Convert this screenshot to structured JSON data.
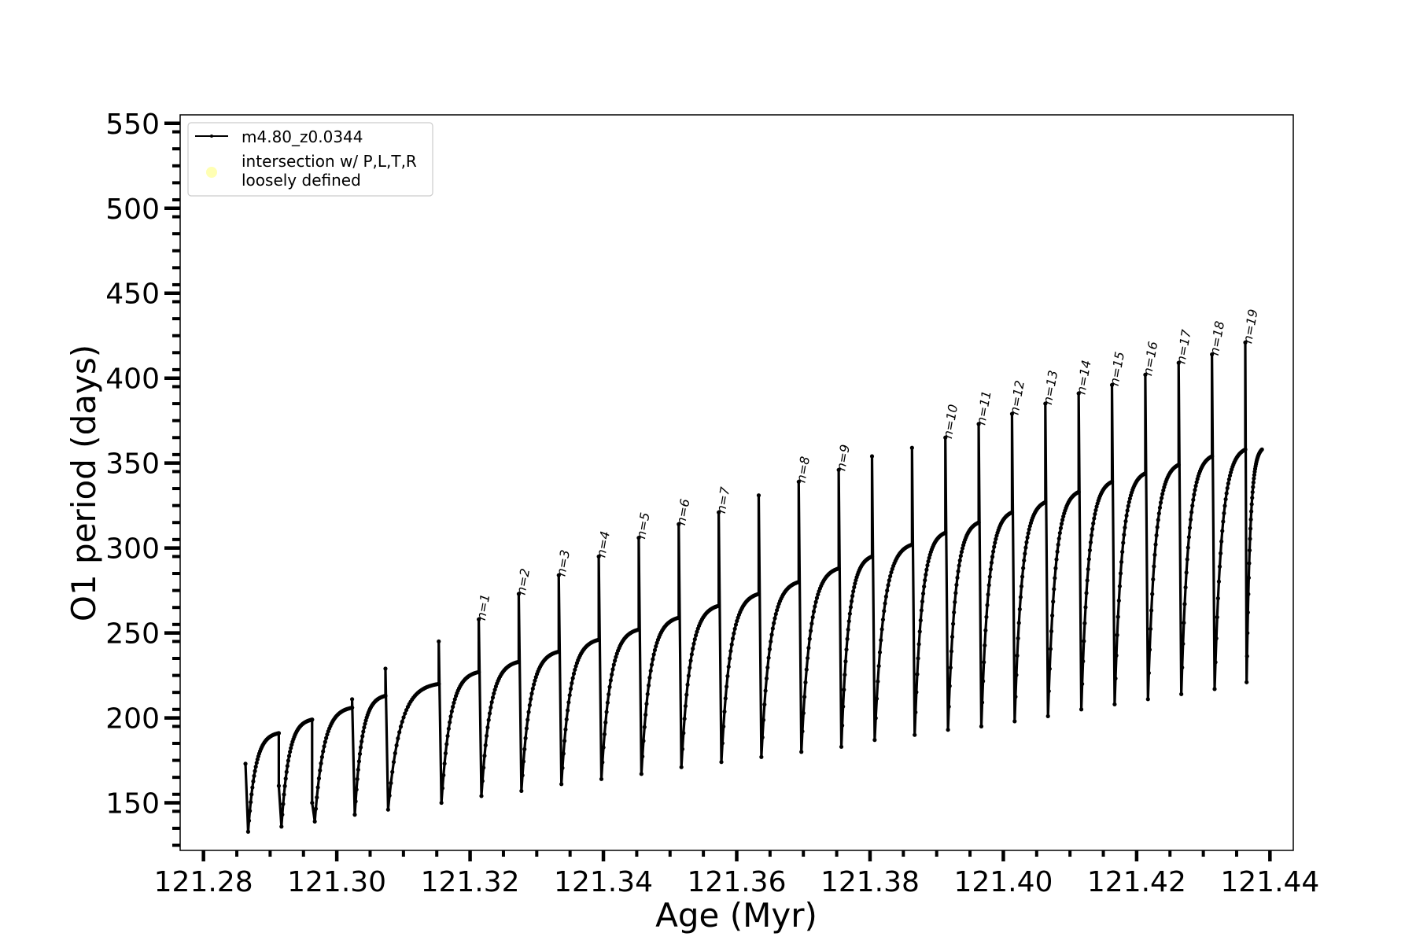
{
  "chart_data": {
    "type": "line",
    "xlabel": "Age (Myr)",
    "ylabel": "O1 period (days)",
    "xlim": [
      121.2765,
      121.4435
    ],
    "ylim": [
      122,
      555
    ],
    "x_ticks": [
      121.28,
      121.3,
      121.32,
      121.34,
      121.36,
      121.38,
      121.4,
      121.42,
      121.44
    ],
    "x_tick_labels": [
      "121.28",
      "121.30",
      "121.32",
      "121.34",
      "121.36",
      "121.38",
      "121.40",
      "121.42",
      "121.44"
    ],
    "y_ticks": [
      150,
      200,
      250,
      300,
      350,
      400,
      450,
      500,
      550
    ],
    "y_tick_labels": [
      "150",
      "200",
      "250",
      "300",
      "350",
      "400",
      "450",
      "500",
      "550"
    ],
    "grid": false,
    "legend": {
      "placement": "top-left",
      "entries": [
        {
          "label": "m4.80_z0.0344",
          "marker": "line-with-dots",
          "color": "#000000"
        },
        {
          "label_line1": "intersection w/ P,L,T,R",
          "label_line2": "loosely defined",
          "marker": "circle",
          "color": "#ffffb3"
        }
      ]
    },
    "series": [
      {
        "name": "m4.80_z0.0344",
        "color": "#000000",
        "cycles": [
          {
            "start": 121.2863,
            "spike": 173,
            "min": 133,
            "plateau": 191,
            "end": 121.2913
          },
          {
            "start": 121.2913,
            "spike": 160,
            "min": 136,
            "plateau": 199,
            "end": 121.2963
          },
          {
            "start": 121.2963,
            "spike": 150,
            "min": 139,
            "plateau": 206,
            "end": 121.3023
          },
          {
            "start": 121.3023,
            "spike": 211,
            "min": 143,
            "plateau": 213,
            "end": 121.3073
          },
          {
            "start": 121.3073,
            "spike": 229,
            "min": 146,
            "plateau": 220,
            "end": 121.3153
          },
          {
            "start": 121.3153,
            "spike": 245,
            "min": 150,
            "plateau": 227,
            "end": 121.3213
          },
          {
            "start": 121.3213,
            "spike": 258,
            "min": 154,
            "plateau": 233,
            "end": 121.3273
          },
          {
            "start": 121.3273,
            "spike": 273,
            "min": 157,
            "plateau": 239,
            "end": 121.3333
          },
          {
            "start": 121.3333,
            "spike": 284,
            "min": 161,
            "plateau": 246,
            "end": 121.3393
          },
          {
            "start": 121.3393,
            "spike": 295,
            "min": 164,
            "plateau": 252,
            "end": 121.3453
          },
          {
            "start": 121.3453,
            "spike": 306,
            "min": 167,
            "plateau": 259,
            "end": 121.3513
          },
          {
            "start": 121.3513,
            "spike": 314,
            "min": 171,
            "plateau": 266,
            "end": 121.3573
          },
          {
            "start": 121.3573,
            "spike": 321,
            "min": 174,
            "plateau": 273,
            "end": 121.3633
          },
          {
            "start": 121.3633,
            "spike": 331,
            "min": 177,
            "plateau": 280,
            "end": 121.3693
          },
          {
            "start": 121.3693,
            "spike": 339,
            "min": 180,
            "plateau": 288,
            "end": 121.3753
          },
          {
            "start": 121.3753,
            "spike": 346,
            "min": 183,
            "plateau": 295,
            "end": 121.3803
          },
          {
            "start": 121.3803,
            "spike": 354,
            "min": 187,
            "plateau": 302,
            "end": 121.3863
          },
          {
            "start": 121.3863,
            "spike": 359,
            "min": 190,
            "plateau": 309,
            "end": 121.3913
          },
          {
            "start": 121.3913,
            "spike": 365,
            "min": 193,
            "plateau": 315,
            "end": 121.3963
          },
          {
            "start": 121.3963,
            "spike": 373,
            "min": 195,
            "plateau": 321,
            "end": 121.4013
          },
          {
            "start": 121.4013,
            "spike": 379,
            "min": 198,
            "plateau": 327,
            "end": 121.4063
          },
          {
            "start": 121.4063,
            "spike": 385,
            "min": 201,
            "plateau": 333,
            "end": 121.4113
          },
          {
            "start": 121.4113,
            "spike": 391,
            "min": 205,
            "plateau": 339,
            "end": 121.4163
          },
          {
            "start": 121.4163,
            "spike": 396,
            "min": 208,
            "plateau": 344,
            "end": 121.4213
          },
          {
            "start": 121.4213,
            "spike": 402,
            "min": 211,
            "plateau": 349,
            "end": 121.4263
          },
          {
            "start": 121.4263,
            "spike": 409,
            "min": 214,
            "plateau": 354,
            "end": 121.4313
          },
          {
            "start": 121.4313,
            "spike": 414,
            "min": 217,
            "plateau": 358,
            "end": 121.4363
          },
          {
            "start": 121.4363,
            "spike": 421,
            "min": 221,
            "plateau": 358,
            "end": 121.4388
          }
        ]
      }
    ],
    "annotations": [
      {
        "text": "n=1",
        "x": 121.3213,
        "y": 258
      },
      {
        "text": "n=2",
        "x": 121.3273,
        "y": 273
      },
      {
        "text": "n=3",
        "x": 121.3333,
        "y": 284
      },
      {
        "text": "n=4",
        "x": 121.3393,
        "y": 295
      },
      {
        "text": "n=5",
        "x": 121.3453,
        "y": 306
      },
      {
        "text": "n=6",
        "x": 121.3513,
        "y": 314
      },
      {
        "text": "n=7",
        "x": 121.3573,
        "y": 321
      },
      {
        "text": "n=8",
        "x": 121.3693,
        "y": 339
      },
      {
        "text": "n=9",
        "x": 121.3753,
        "y": 346
      },
      {
        "text": "n=10",
        "x": 121.3913,
        "y": 365
      },
      {
        "text": "n=11",
        "x": 121.3963,
        "y": 373
      },
      {
        "text": "n=12",
        "x": 121.4013,
        "y": 379
      },
      {
        "text": "n=13",
        "x": 121.4063,
        "y": 385
      },
      {
        "text": "n=14",
        "x": 121.4113,
        "y": 391
      },
      {
        "text": "n=15",
        "x": 121.4163,
        "y": 396
      },
      {
        "text": "n=16",
        "x": 121.4213,
        "y": 402
      },
      {
        "text": "n=17",
        "x": 121.4263,
        "y": 409
      },
      {
        "text": "n=18",
        "x": 121.4313,
        "y": 414
      },
      {
        "text": "n=19",
        "x": 121.4363,
        "y": 421
      }
    ]
  }
}
